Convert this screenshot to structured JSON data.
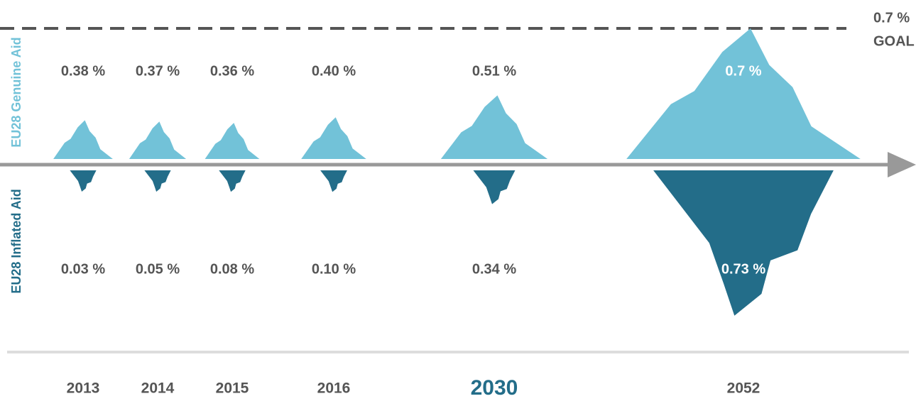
{
  "chart_data": {
    "type": "iceberg",
    "categories": [
      "2013",
      "2014",
      "2015",
      "2016",
      "2030",
      "2052"
    ],
    "series": [
      {
        "name": "EU28 Genuine Aid",
        "color": "#72c2d8",
        "values": [
          0.38,
          0.37,
          0.36,
          0.4,
          0.51,
          0.7
        ],
        "value_labels": [
          "0.38 %",
          "0.37 %",
          "0.36 %",
          "0.40 %",
          "0.51 %",
          "0.7 %"
        ]
      },
      {
        "name": "EU28 Inflated Aid",
        "color": "#236d89",
        "values": [
          0.03,
          0.05,
          0.08,
          0.1,
          0.34,
          0.73
        ],
        "value_labels": [
          "0.03 %",
          "0.05 %",
          "0.08 %",
          "0.10 %",
          "0.34 %",
          "0.73 %"
        ]
      }
    ],
    "goal": {
      "value": 0.7,
      "label": "0.7 %",
      "text": "GOAL"
    },
    "highlight_category": "2030",
    "highlight_color": "#236d89",
    "text_color": "#555555"
  }
}
